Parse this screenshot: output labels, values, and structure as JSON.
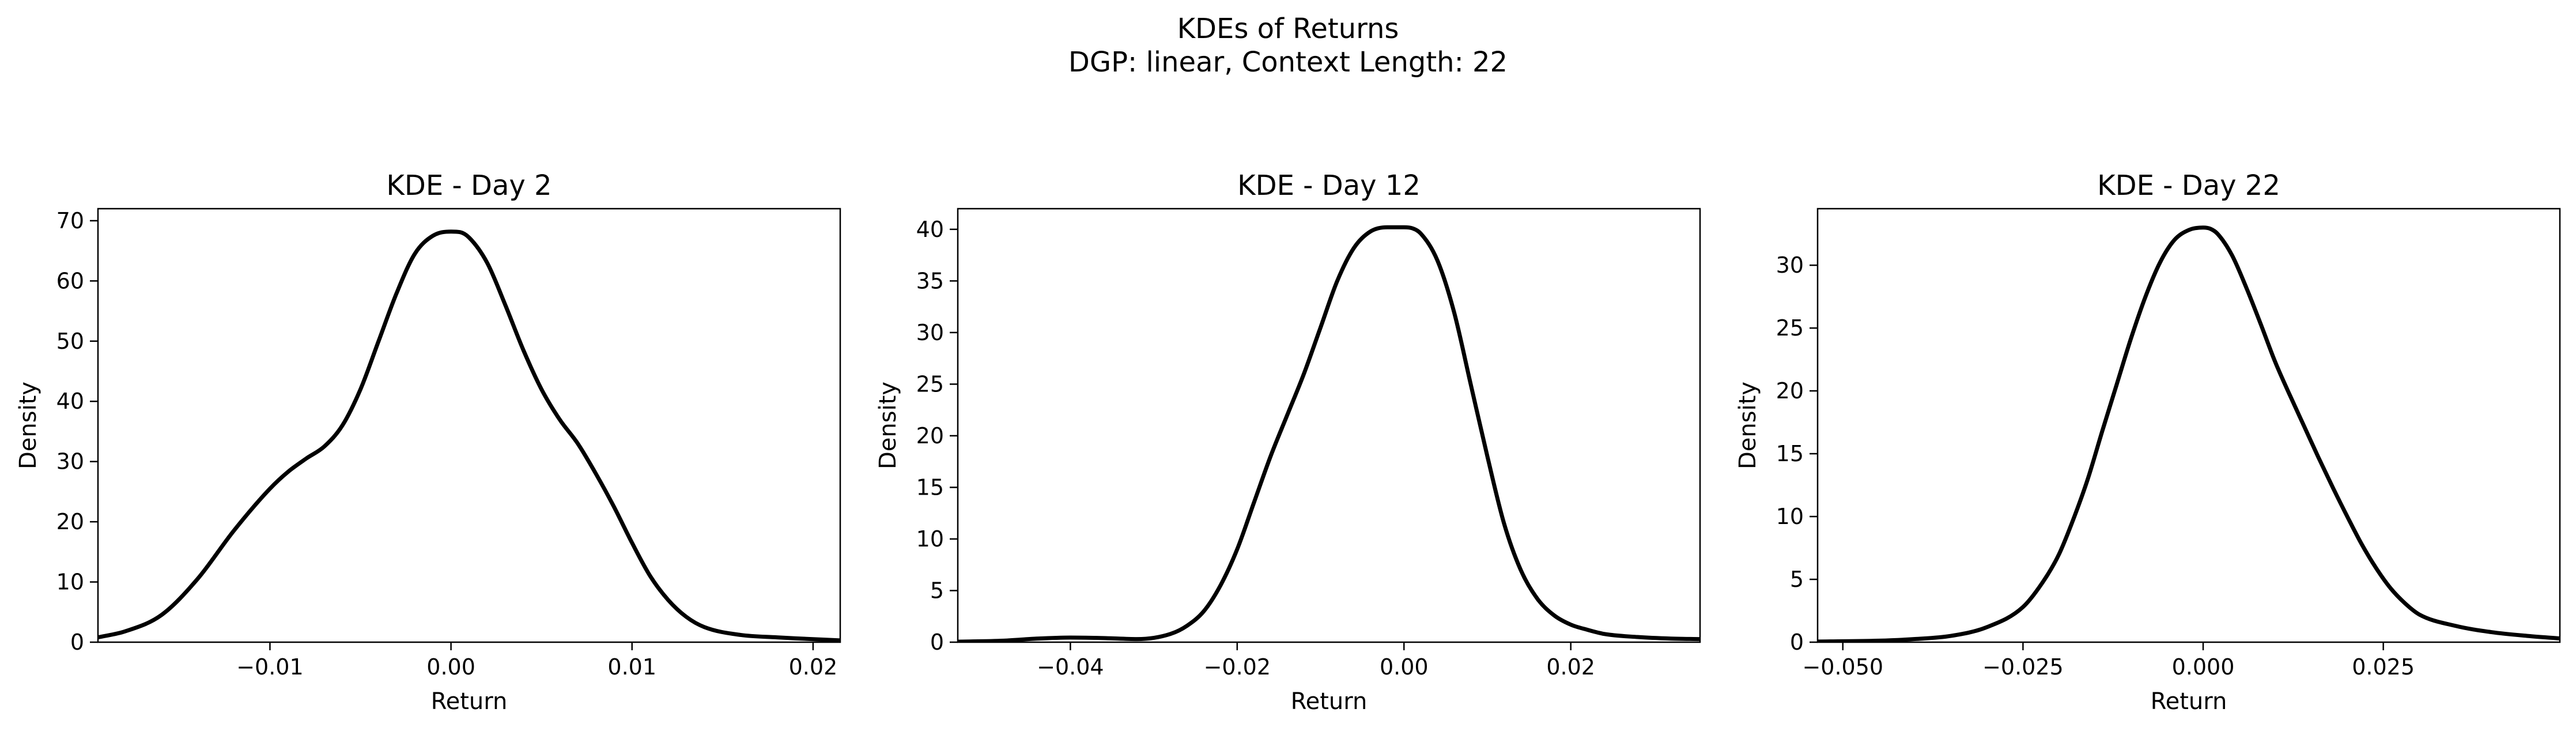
{
  "figure": {
    "title_line1": "KDEs of Returns",
    "title_line2": "DGP: linear, Context Length: 22"
  },
  "chart_data": [
    {
      "type": "line",
      "title": "KDE - Day 2",
      "xlabel": "Return",
      "ylabel": "Density",
      "xlim": [
        -0.0195,
        0.0215
      ],
      "ylim": [
        0,
        72
      ],
      "xticks": [
        -0.01,
        0.0,
        0.01,
        0.02
      ],
      "xtick_labels": [
        "−0.01",
        "0.00",
        "0.01",
        "0.02"
      ],
      "yticks": [
        0,
        10,
        20,
        30,
        40,
        50,
        60,
        70
      ],
      "ytick_labels": [
        "0",
        "10",
        "20",
        "30",
        "40",
        "50",
        "60",
        "70"
      ],
      "line_color": "#000000",
      "grid": false,
      "series": [
        {
          "x": [
            -0.0195,
            -0.018,
            -0.016,
            -0.014,
            -0.012,
            -0.01,
            -0.009,
            -0.008,
            -0.007,
            -0.006,
            -0.005,
            -0.004,
            -0.003,
            -0.002,
            -0.001,
            0.0,
            0.0005,
            0.001,
            0.002,
            0.003,
            0.004,
            0.005,
            0.006,
            0.007,
            0.008,
            0.009,
            0.01,
            0.011,
            0.012,
            0.013,
            0.014,
            0.016,
            0.018,
            0.02,
            0.0215
          ],
          "y": [
            0.8,
            1.8,
            4.5,
            10.5,
            18.5,
            25.5,
            28.3,
            30.5,
            32.5,
            36.0,
            42.0,
            50.0,
            58.0,
            64.5,
            67.5,
            68.2,
            68.1,
            67.2,
            63.0,
            56.0,
            48.5,
            42.0,
            37.0,
            33.0,
            28.0,
            22.5,
            16.5,
            11.0,
            7.0,
            4.2,
            2.5,
            1.2,
            0.8,
            0.5,
            0.3
          ]
        }
      ]
    },
    {
      "type": "line",
      "title": "KDE - Day 12",
      "xlabel": "Return",
      "ylabel": "Density",
      "xlim": [
        -0.0535,
        0.0355
      ],
      "ylim": [
        0,
        42
      ],
      "xticks": [
        -0.04,
        -0.02,
        0.0,
        0.02
      ],
      "xtick_labels": [
        "−0.04",
        "−0.02",
        "0.00",
        "0.02"
      ],
      "yticks": [
        0,
        5,
        10,
        15,
        20,
        25,
        30,
        35,
        40
      ],
      "ytick_labels": [
        "0",
        "5",
        "10",
        "15",
        "20",
        "25",
        "30",
        "35",
        "40"
      ],
      "line_color": "#000000",
      "grid": false,
      "series": [
        {
          "x": [
            -0.0535,
            -0.048,
            -0.044,
            -0.04,
            -0.036,
            -0.032,
            -0.028,
            -0.026,
            -0.024,
            -0.022,
            -0.02,
            -0.018,
            -0.016,
            -0.014,
            -0.012,
            -0.01,
            -0.008,
            -0.006,
            -0.004,
            -0.002,
            0.0,
            0.001,
            0.002,
            0.004,
            0.006,
            0.008,
            0.01,
            0.012,
            0.014,
            0.016,
            0.018,
            0.02,
            0.022,
            0.024,
            0.028,
            0.032,
            0.0355
          ],
          "y": [
            0.05,
            0.15,
            0.35,
            0.45,
            0.4,
            0.3,
            0.8,
            1.6,
            3.0,
            5.5,
            9.0,
            13.5,
            18.0,
            22.0,
            26.0,
            30.5,
            35.0,
            38.2,
            39.8,
            40.2,
            40.2,
            40.1,
            39.6,
            37.0,
            32.0,
            25.0,
            18.0,
            11.5,
            7.0,
            4.2,
            2.6,
            1.7,
            1.2,
            0.8,
            0.5,
            0.35,
            0.3
          ]
        }
      ]
    },
    {
      "type": "line",
      "title": "KDE - Day 22",
      "xlabel": "Return",
      "ylabel": "Density",
      "xlim": [
        -0.0535,
        0.0495
      ],
      "ylim": [
        0,
        34.5
      ],
      "xticks": [
        -0.05,
        -0.025,
        0.0,
        0.025
      ],
      "xtick_labels": [
        "−0.050",
        "−0.025",
        "0.000",
        "0.025"
      ],
      "yticks": [
        0,
        5,
        10,
        15,
        20,
        25,
        30
      ],
      "ytick_labels": [
        "0",
        "5",
        "10",
        "15",
        "20",
        "25",
        "30"
      ],
      "line_color": "#000000",
      "grid": false,
      "series": [
        {
          "x": [
            -0.0535,
            -0.045,
            -0.04,
            -0.035,
            -0.03,
            -0.025,
            -0.022,
            -0.02,
            -0.018,
            -0.016,
            -0.014,
            -0.012,
            -0.01,
            -0.008,
            -0.006,
            -0.004,
            -0.002,
            0.0,
            0.001,
            0.002,
            0.004,
            0.006,
            0.008,
            0.01,
            0.012,
            0.014,
            0.016,
            0.018,
            0.02,
            0.022,
            0.024,
            0.026,
            0.028,
            0.03,
            0.035,
            0.04,
            0.045,
            0.0495
          ],
          "y": [
            0.05,
            0.12,
            0.25,
            0.5,
            1.2,
            2.8,
            5.0,
            7.0,
            9.8,
            13.0,
            16.8,
            20.5,
            24.2,
            27.5,
            30.2,
            32.0,
            32.8,
            33.0,
            32.9,
            32.5,
            30.8,
            28.2,
            25.3,
            22.3,
            19.7,
            17.2,
            14.7,
            12.3,
            10.0,
            7.8,
            5.9,
            4.3,
            3.1,
            2.2,
            1.3,
            0.8,
            0.5,
            0.3
          ]
        }
      ]
    }
  ]
}
